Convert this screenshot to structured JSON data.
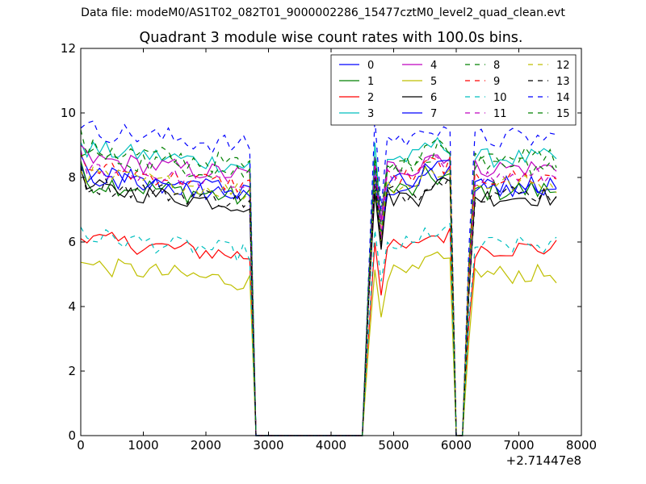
{
  "suptitle": "Data file: modeM0/AS1T02_082T01_9000002286_15477cztM0_level2_quad_clean.evt",
  "chart_data": {
    "type": "line",
    "title": "Quadrant 3 module wise count rates with 100.0s bins.",
    "xlabel": "",
    "ylabel": "",
    "x_offset_label": "+2.71447e8",
    "xlim": [
      0,
      8000
    ],
    "ylim": [
      0,
      12
    ],
    "x_ticks": [
      0,
      1000,
      2000,
      3000,
      4000,
      5000,
      6000,
      7000,
      8000
    ],
    "y_ticks": [
      0,
      2,
      4,
      6,
      8,
      10,
      12
    ],
    "grid": false,
    "legend": {
      "placement": "top-right",
      "columns": 4
    },
    "x_segments": [
      {
        "start": 0,
        "end": 2700,
        "step": 100
      },
      {
        "start": 4600,
        "end": 5900,
        "step": 100
      },
      {
        "start": 6200,
        "end": 7650,
        "step": 100
      }
    ],
    "zero_points": [
      2800,
      2900,
      3000,
      3100,
      3200,
      3300,
      3400,
      3500,
      3600,
      3700,
      3800,
      3900,
      4000,
      4100,
      4200,
      4300,
      4400,
      4500,
      6000,
      6100
    ],
    "series": [
      {
        "name": "0",
        "color": "#0000ff",
        "dash": "solid",
        "level": 7.7,
        "noise": 0.35
      },
      {
        "name": "1",
        "color": "#008000",
        "dash": "solid",
        "level": 7.6,
        "noise": 0.35
      },
      {
        "name": "2",
        "color": "#ff0000",
        "dash": "solid",
        "level": 5.8,
        "noise": 0.3
      },
      {
        "name": "3",
        "color": "#00bfbf",
        "dash": "solid",
        "level": 8.6,
        "noise": 0.3
      },
      {
        "name": "4",
        "color": "#bf00bf",
        "dash": "solid",
        "level": 8.3,
        "noise": 0.3
      },
      {
        "name": "5",
        "color": "#bfbf00",
        "dash": "solid",
        "level": 5.0,
        "noise": 0.3
      },
      {
        "name": "6",
        "color": "#000000",
        "dash": "solid",
        "level": 7.4,
        "noise": 0.3
      },
      {
        "name": "7",
        "color": "#0000ff",
        "dash": "solid",
        "level": 7.8,
        "noise": 0.35
      },
      {
        "name": "8",
        "color": "#008000",
        "dash": "dashed",
        "level": 8.6,
        "noise": 0.35
      },
      {
        "name": "9",
        "color": "#ff0000",
        "dash": "dashed",
        "level": 8.0,
        "noise": 0.3
      },
      {
        "name": "10",
        "color": "#00bfbf",
        "dash": "dashed",
        "level": 5.9,
        "noise": 0.3
      },
      {
        "name": "11",
        "color": "#bf00bf",
        "dash": "dashed",
        "level": 8.0,
        "noise": 0.3
      },
      {
        "name": "12",
        "color": "#bfbf00",
        "dash": "dashed",
        "level": 7.8,
        "noise": 0.3
      },
      {
        "name": "13",
        "color": "#000000",
        "dash": "dashed",
        "level": 7.5,
        "noise": 0.3
      },
      {
        "name": "14",
        "color": "#0000ff",
        "dash": "dashed",
        "level": 9.2,
        "noise": 0.35
      },
      {
        "name": "15",
        "color": "#008000",
        "dash": "dashed",
        "level": 8.4,
        "noise": 0.35
      }
    ]
  }
}
